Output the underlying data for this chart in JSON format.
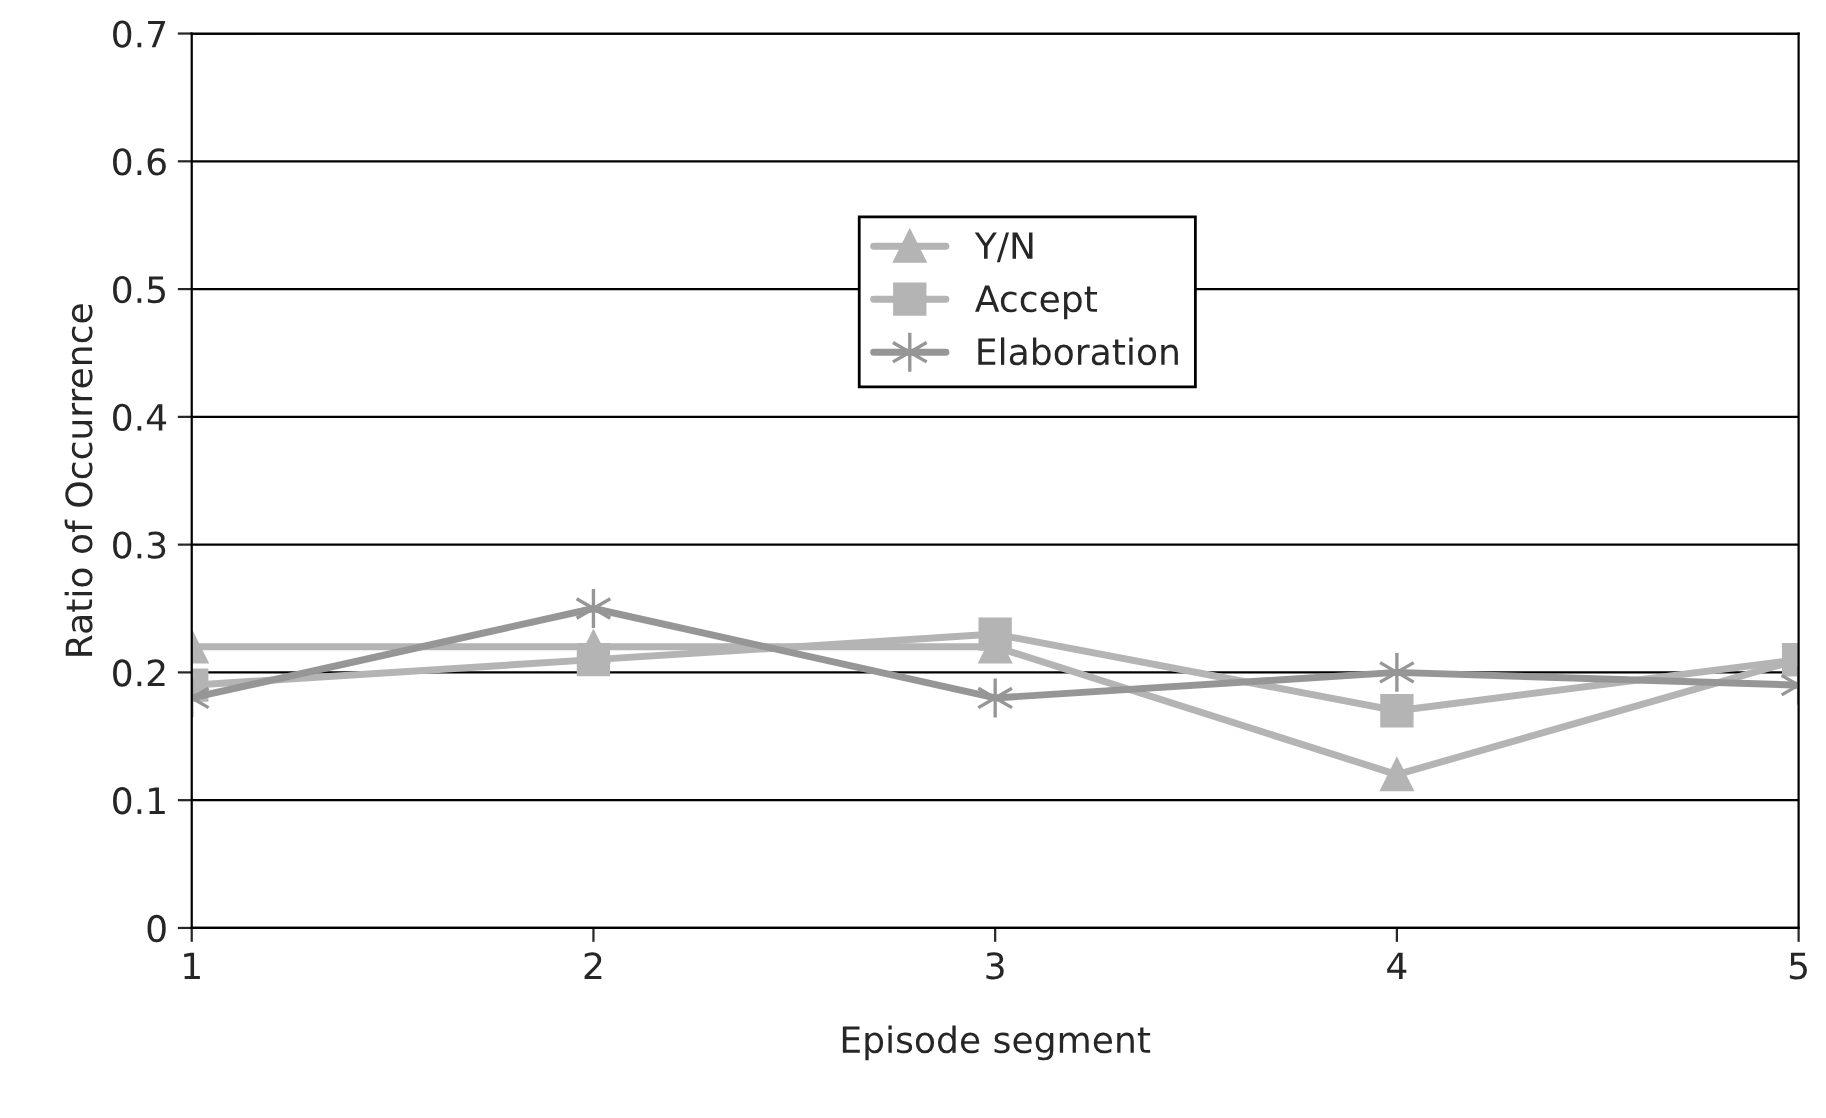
{
  "chart_data": {
    "type": "line",
    "xlabel": "Episode segment",
    "ylabel": "Ratio of Occurrence",
    "x": [
      1,
      2,
      3,
      4,
      5
    ],
    "xlim": [
      1,
      5
    ],
    "xticks": [
      1,
      2,
      3,
      4,
      5
    ],
    "ylim": [
      0,
      0.7
    ],
    "yticks": [
      0,
      0.1,
      0.2,
      0.3,
      0.4,
      0.5,
      0.6,
      0.7
    ],
    "grid": "y",
    "legend": "center",
    "series": [
      {
        "name": "Y/N",
        "color": "#b4b4b4",
        "marker": "triangle",
        "values": [
          0.22,
          0.22,
          0.22,
          0.12,
          0.21
        ]
      },
      {
        "name": "Accept",
        "color": "#b4b4b4",
        "marker": "square",
        "values": [
          0.19,
          0.21,
          0.23,
          0.17,
          0.21
        ]
      },
      {
        "name": "Elaboration",
        "color": "#969696",
        "marker": "cross",
        "values": [
          0.18,
          0.25,
          0.18,
          0.2,
          0.19
        ]
      }
    ]
  }
}
